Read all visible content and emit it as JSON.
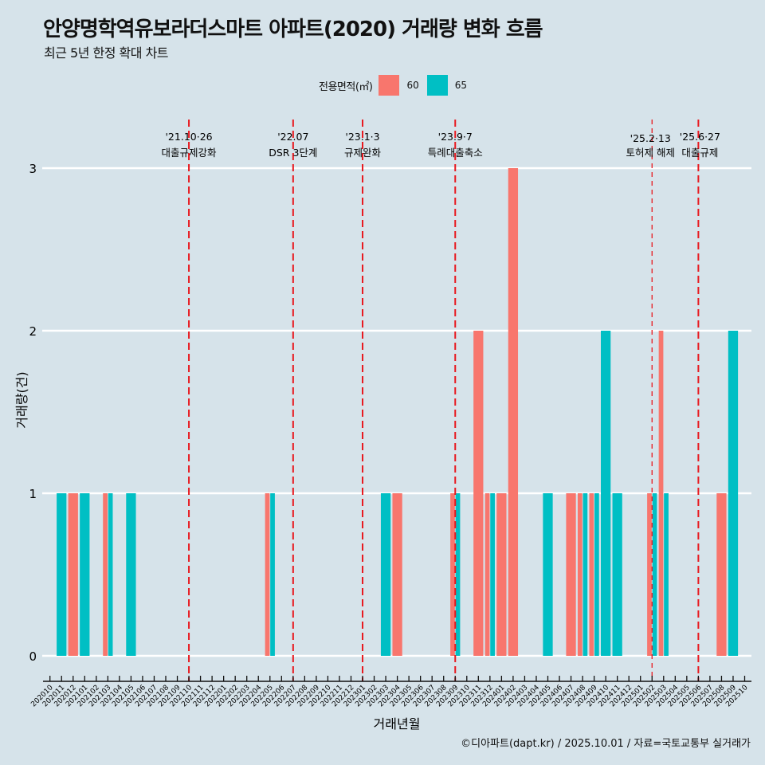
{
  "header": {
    "title": "안양명학역유보라더스마트 아파트(2020) 거래량 변화 흐름",
    "subtitle": "최근 5년 한정 확대 차트"
  },
  "legend": {
    "title": "전용면적(㎡)",
    "items": [
      {
        "label": "60",
        "color": "#F8766D"
      },
      {
        "label": "65",
        "color": "#00BFC4"
      }
    ]
  },
  "caption": "©디아파트(dapt.kr) / 2025.10.01 / 자료=국토교통부 실거래가",
  "chart_data": {
    "type": "bar",
    "title": "안양명학역유보라더스마트 아파트(2020) 거래량 변화 흐름",
    "subtitle": "최근 5년 한정 확대 차트",
    "xlabel": "거래년월",
    "ylabel": "거래량(건)",
    "ylim": [
      0,
      3
    ],
    "yticks": [
      0,
      1,
      2,
      3
    ],
    "grid": "major-y",
    "legend_position": "top",
    "bar_mode": "dodge",
    "categories": [
      "202010",
      "202011",
      "202012",
      "202101",
      "202102",
      "202103",
      "202104",
      "202105",
      "202106",
      "202107",
      "202108",
      "202109",
      "202110",
      "202111",
      "202112",
      "202201",
      "202202",
      "202203",
      "202204",
      "202205",
      "202206",
      "202207",
      "202208",
      "202209",
      "202210",
      "202211",
      "202212",
      "202301",
      "202302",
      "202303",
      "202304",
      "202305",
      "202306",
      "202307",
      "202308",
      "202309",
      "202310",
      "202311",
      "202312",
      "202401",
      "202402",
      "202403",
      "202404",
      "202405",
      "202406",
      "202407",
      "202408",
      "202409",
      "202410",
      "202411",
      "202412",
      "202501",
      "202502",
      "202503",
      "202504",
      "202505",
      "202506",
      "202507",
      "202508",
      "202509",
      "202510"
    ],
    "series": [
      {
        "name": "60",
        "color": "#F8766D",
        "values": {
          "202012": 1,
          "202103": 1,
          "202205": 1,
          "202304": 1,
          "202309": 1,
          "202311": 2,
          "202312": 1,
          "202401": 1,
          "202402": 3,
          "202407": 1,
          "202408": 1,
          "202409": 1,
          "202502": 1,
          "202503": 2,
          "202508": 1
        }
      },
      {
        "name": "65",
        "color": "#00BFC4",
        "values": {
          "202011": 1,
          "202101": 1,
          "202103": 1,
          "202105": 1,
          "202205": 1,
          "202303": 1,
          "202309": 1,
          "202312": 1,
          "202405": 1,
          "202408": 1,
          "202409": 1,
          "202410": 2,
          "202411": 1,
          "202502": 1,
          "202503": 1,
          "202509": 2
        }
      }
    ],
    "annotations": [
      {
        "month": "202110",
        "date": "'21.10·26",
        "label": "대출규제강화",
        "color": "#E8191F",
        "style": "dashed"
      },
      {
        "month": "202207",
        "date": "'22.07",
        "label": "DSR 3단계",
        "color": "#E8191F",
        "style": "dashed"
      },
      {
        "month": "202301",
        "date": "'23.1·3",
        "label": "규제완화",
        "color": "#E8191F",
        "style": "dashed"
      },
      {
        "month": "202309",
        "date": "'23.9·7",
        "label": "특례대출축소",
        "color": "#E8191F",
        "style": "dashed"
      },
      {
        "month": "202502",
        "date": "'25.2·13",
        "label": "토허제 해제",
        "color": "#E8191F",
        "style": "dashed-thin"
      },
      {
        "month": "202506",
        "date": "'25.6·27",
        "label": "대출규제",
        "color": "#E8191F",
        "style": "dashed"
      }
    ]
  }
}
